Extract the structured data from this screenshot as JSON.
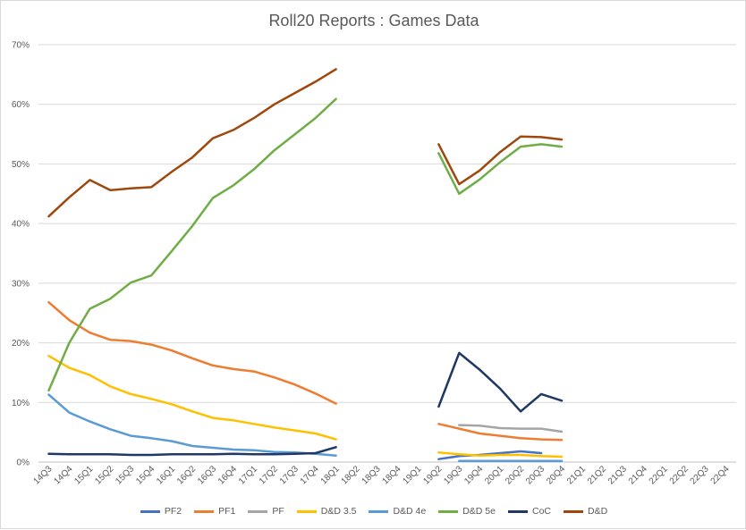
{
  "chart_data": {
    "type": "line",
    "title": "Roll20 Reports : Games Data",
    "ylim": [
      0,
      70
    ],
    "yticks": [
      "0%",
      "10%",
      "20%",
      "30%",
      "40%",
      "50%",
      "60%",
      "70%"
    ],
    "grid": true,
    "legend_position": "bottom",
    "categories": [
      "14Q3",
      "14Q4",
      "15Q1",
      "15Q2",
      "15Q3",
      "15Q4",
      "16Q1",
      "16Q2",
      "16Q3",
      "16Q4",
      "17Q1",
      "17Q2",
      "17Q3",
      "17Q4",
      "18Q1",
      "18Q2",
      "18Q3",
      "18Q4",
      "19Q1",
      "19Q2",
      "19Q3",
      "19Q4",
      "20Q1",
      "20Q2",
      "20Q3",
      "20Q4",
      "21Q1",
      "21Q2",
      "21Q3",
      "21Q4",
      "22Q1",
      "22Q2",
      "22Q3",
      "22Q4"
    ],
    "series": [
      {
        "name": "PF2",
        "color": "#4472c4",
        "values": [
          null,
          null,
          null,
          null,
          null,
          null,
          null,
          null,
          null,
          null,
          null,
          null,
          null,
          null,
          null,
          null,
          null,
          null,
          null,
          0.5,
          1.0,
          1.2,
          1.5,
          1.8,
          1.5,
          null,
          null,
          null,
          null,
          null,
          null,
          null,
          null,
          null
        ]
      },
      {
        "name": "PF1",
        "color": "#ed7d31",
        "values": [
          26.8,
          23.8,
          21.7,
          20.5,
          20.3,
          19.7,
          18.7,
          17.4,
          16.2,
          15.6,
          15.2,
          14.2,
          13.0,
          11.5,
          9.8,
          null,
          null,
          null,
          null,
          6.4,
          5.6,
          4.8,
          4.4,
          4.0,
          3.8,
          3.7,
          null,
          null,
          null,
          null,
          null,
          null,
          null,
          null
        ]
      },
      {
        "name": "PF",
        "color": "#a5a5a5",
        "values": [
          null,
          null,
          null,
          null,
          null,
          null,
          null,
          null,
          null,
          null,
          null,
          null,
          null,
          null,
          null,
          null,
          null,
          null,
          null,
          null,
          6.2,
          6.1,
          5.7,
          5.6,
          5.6,
          5.1,
          null,
          null,
          null,
          null,
          null,
          null,
          null,
          null
        ]
      },
      {
        "name": "D&D 3.5",
        "color": "#ffc000",
        "values": [
          17.8,
          15.8,
          14.6,
          12.7,
          11.4,
          10.6,
          9.7,
          8.5,
          7.4,
          7.0,
          6.4,
          5.8,
          5.3,
          4.8,
          3.8,
          null,
          null,
          null,
          null,
          1.6,
          1.3,
          1.1,
          1.2,
          1.2,
          1.0,
          0.9,
          null,
          null,
          null,
          null,
          null,
          null,
          null,
          null
        ]
      },
      {
        "name": "D&D 4e",
        "color": "#5b9bd5",
        "values": [
          11.3,
          8.3,
          6.8,
          5.5,
          4.4,
          4.0,
          3.5,
          2.7,
          2.4,
          2.1,
          2.0,
          1.7,
          1.6,
          1.4,
          1.1,
          null,
          null,
          null,
          null,
          null,
          0.2,
          0.2,
          0.2,
          0.2,
          0.2,
          0.2,
          null,
          null,
          null,
          null,
          null,
          null,
          null,
          null
        ]
      },
      {
        "name": "D&D 5e",
        "color": "#70ad47",
        "values": [
          12.0,
          20.0,
          25.7,
          27.4,
          30.1,
          31.3,
          35.4,
          39.6,
          44.3,
          46.4,
          49.1,
          52.3,
          55.0,
          57.7,
          60.9,
          null,
          null,
          null,
          null,
          51.8,
          45.0,
          47.4,
          50.3,
          52.9,
          53.3,
          52.9,
          null,
          null,
          null,
          null,
          null,
          null,
          null,
          null
        ]
      },
      {
        "name": "CoC",
        "color": "#203864",
        "values": [
          1.4,
          1.3,
          1.3,
          1.3,
          1.2,
          1.2,
          1.3,
          1.3,
          1.3,
          1.4,
          1.3,
          1.3,
          1.4,
          1.5,
          2.5,
          null,
          null,
          null,
          null,
          9.3,
          18.3,
          15.5,
          12.3,
          8.5,
          11.4,
          10.3,
          null,
          null,
          null,
          null,
          null,
          null,
          null,
          null
        ]
      },
      {
        "name": "D&D",
        "color": "#9e480e",
        "values": [
          41.2,
          44.4,
          47.3,
          45.6,
          45.9,
          46.1,
          48.7,
          51.1,
          54.3,
          55.7,
          57.7,
          60.0,
          61.9,
          63.8,
          65.9,
          null,
          null,
          null,
          null,
          53.3,
          46.6,
          48.9,
          52.0,
          54.6,
          54.5,
          54.1,
          null,
          null,
          null,
          null,
          null,
          null,
          null,
          null
        ]
      }
    ]
  }
}
